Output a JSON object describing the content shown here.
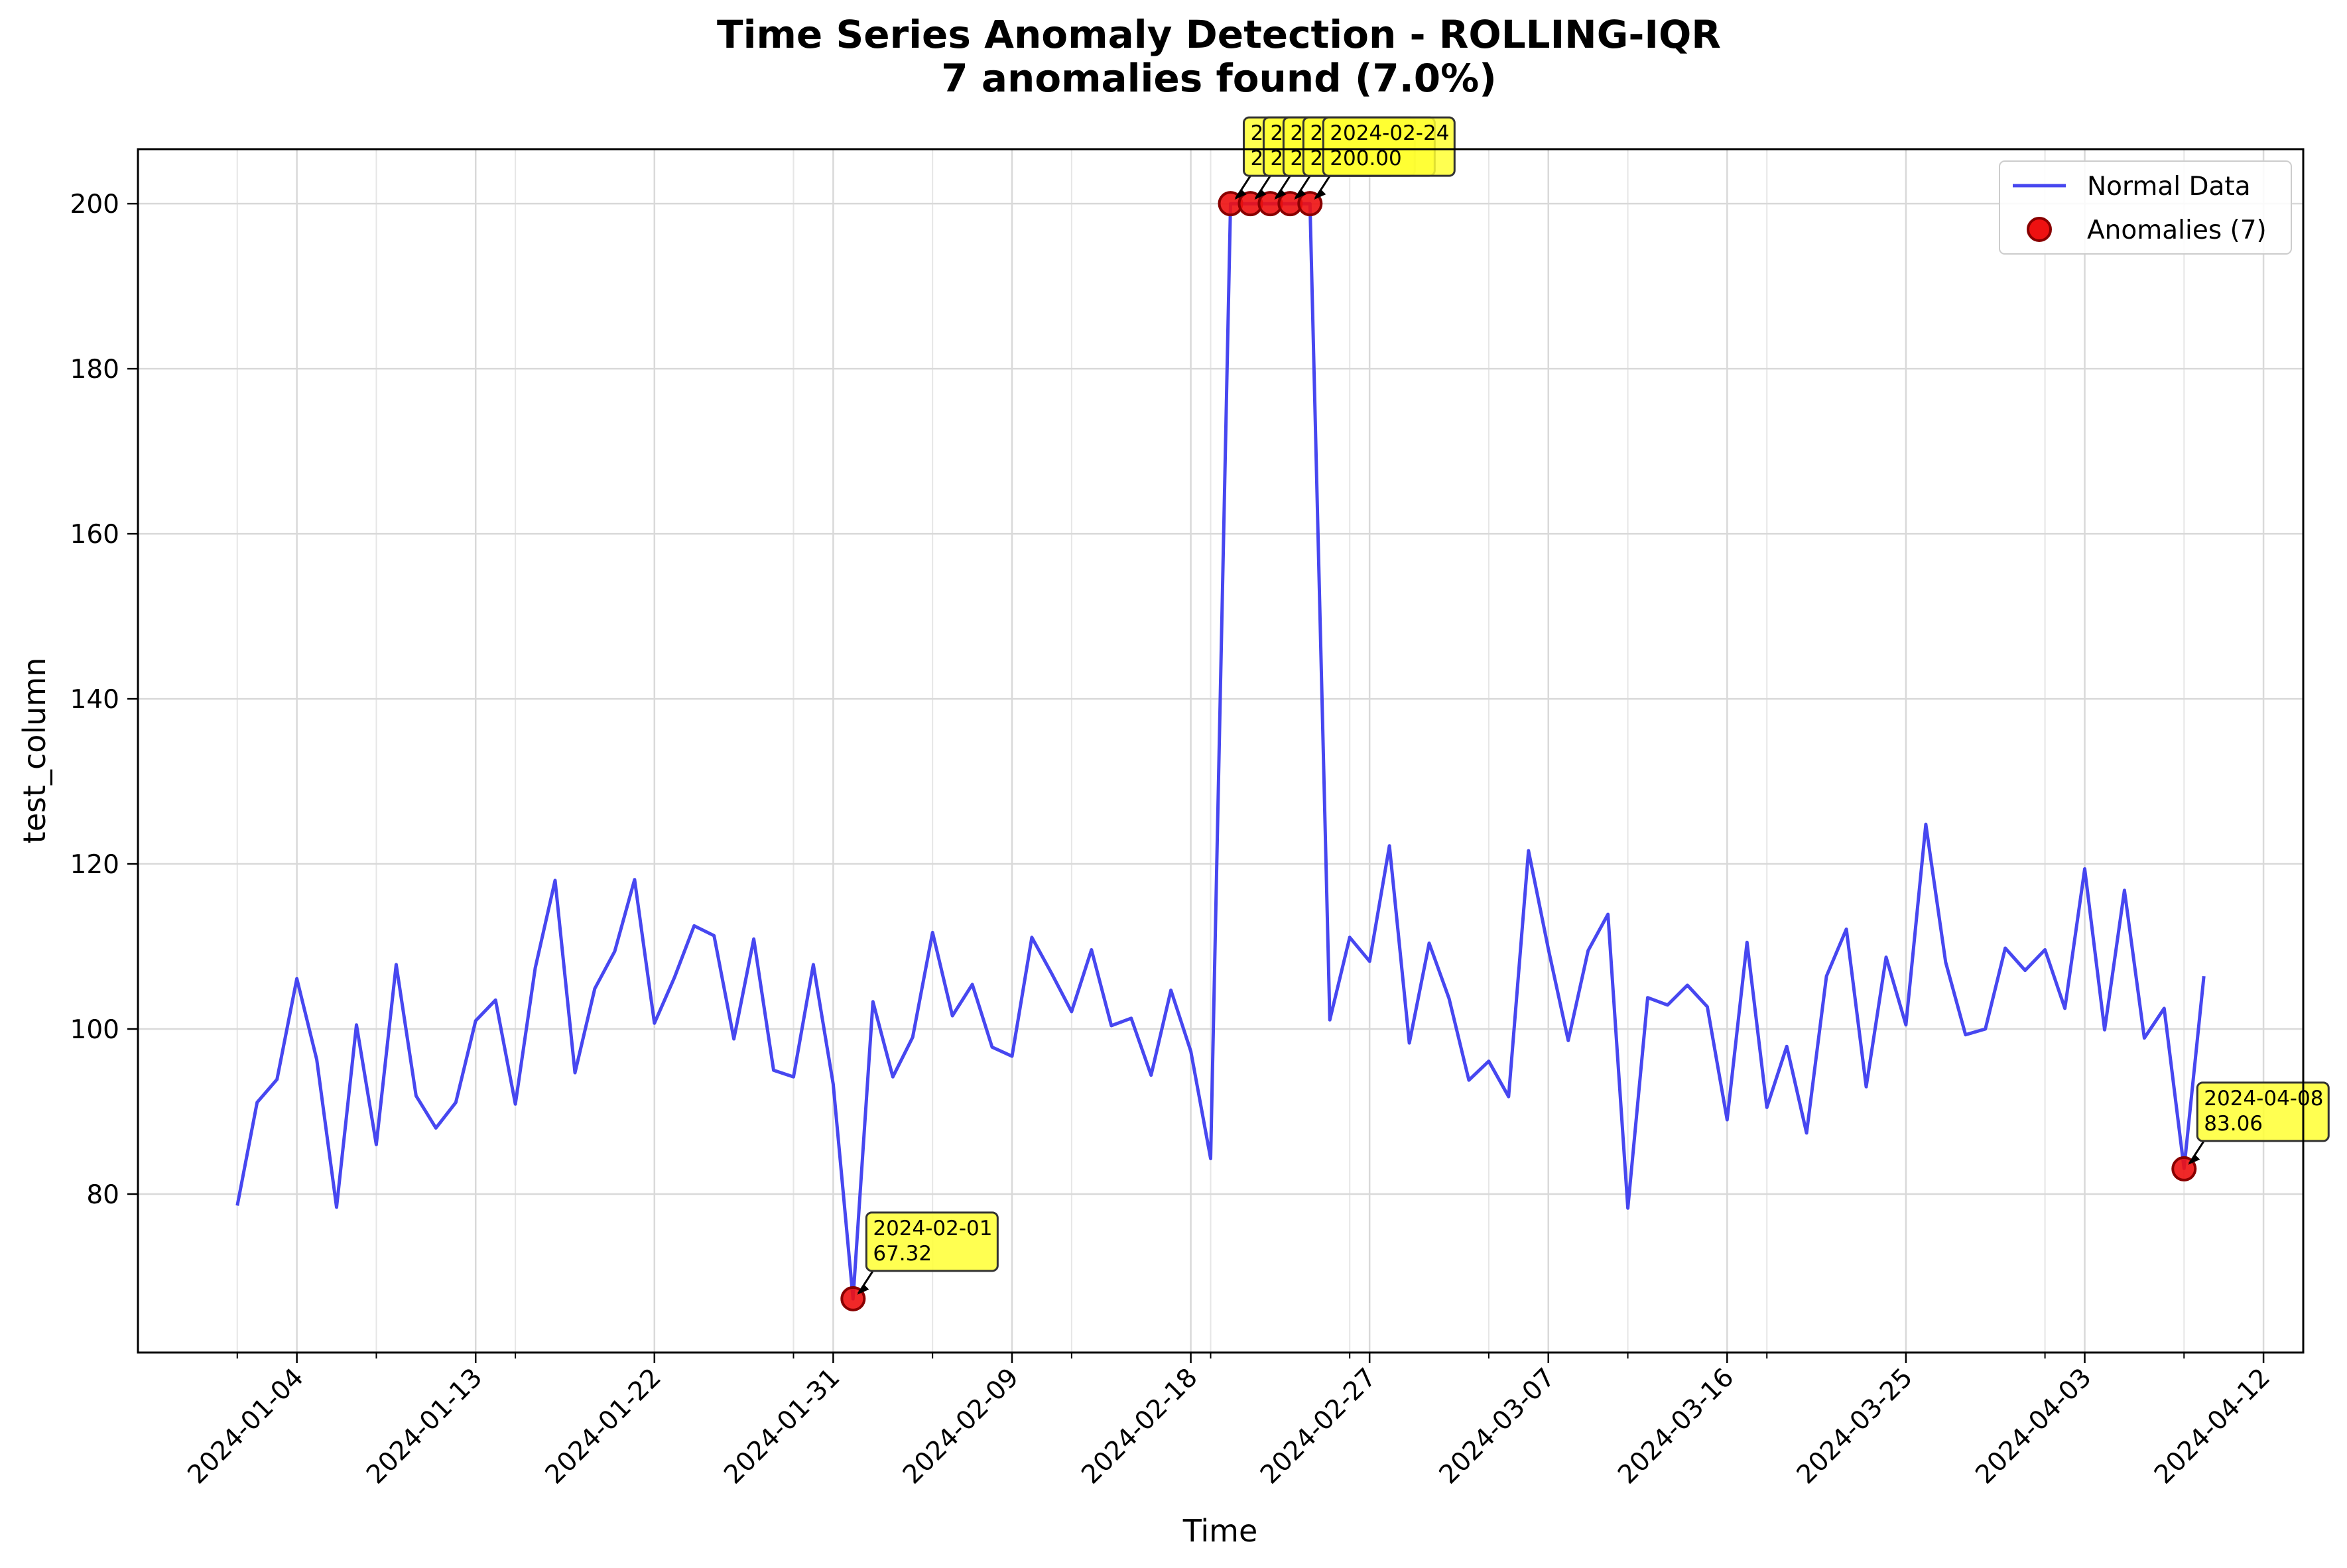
{
  "chart_data": {
    "type": "line",
    "title": "Time Series Anomaly Detection - ROLLING-IQR",
    "subtitle": "7 anomalies found (7.0%)",
    "xlabel": "Time",
    "ylabel": "test_column",
    "x_start_date": "2024-01-01",
    "xlim": [
      "2023-12-27",
      "2024-04-14"
    ],
    "ylim": [
      60.8,
      206.6
    ],
    "y_ticks": [
      80,
      100,
      120,
      140,
      160,
      180,
      200
    ],
    "x_ticks": [
      "2024-01-04",
      "2024-01-13",
      "2024-01-22",
      "2024-01-31",
      "2024-02-09",
      "2024-02-18",
      "2024-02-27",
      "2024-03-07",
      "2024-03-16",
      "2024-03-25",
      "2024-04-03",
      "2024-04-12"
    ],
    "grid": true,
    "legend_position": "top-right",
    "colors": {
      "line": "#3333ee",
      "anomaly_fill": "#ee1111",
      "anomaly_edge": "#880000",
      "annotation_bg": "#ffff33"
    },
    "series": [
      {
        "name": "Normal Data",
        "values": [
          78.6,
          91.1,
          93.9,
          106.1,
          96.3,
          78.4,
          100.5,
          86.0,
          107.8,
          91.9,
          88.0,
          91.1,
          101.0,
          103.5,
          90.9,
          107.4,
          118.0,
          94.7,
          104.9,
          109.4,
          118.1,
          100.7,
          106.2,
          112.5,
          111.3,
          98.8,
          110.9,
          95.0,
          94.2,
          107.8,
          93.3,
          67.3,
          103.3,
          94.2,
          99.0,
          111.7,
          101.6,
          105.4,
          97.8,
          96.7,
          111.1,
          106.7,
          102.1,
          109.6,
          100.4,
          101.3,
          94.4,
          104.7,
          97.3,
          84.3,
          200.0,
          200.0,
          200.0,
          200.0,
          200.0,
          101.1,
          111.1,
          108.2,
          122.2,
          98.3,
          110.4,
          103.7,
          93.8,
          96.1,
          91.8,
          121.6,
          109.7,
          98.6,
          109.5,
          113.9,
          78.3,
          103.8,
          102.9,
          105.3,
          102.7,
          89.0,
          110.5,
          90.5,
          97.9,
          87.4,
          106.4,
          112.1,
          93.0,
          108.7,
          100.5,
          124.8,
          108.1,
          99.3,
          100.0,
          109.8,
          107.1,
          109.6,
          102.5,
          119.4,
          99.9,
          116.8,
          98.9,
          102.5,
          83.1,
          106.4
        ]
      },
      {
        "name": "Anomalies (7)",
        "type": "scatter",
        "points": [
          {
            "x": "2024-02-01",
            "y": 67.32
          },
          {
            "x": "2024-02-20",
            "y": 200.0
          },
          {
            "x": "2024-02-21",
            "y": 200.0
          },
          {
            "x": "2024-02-22",
            "y": 200.0
          },
          {
            "x": "2024-02-23",
            "y": 200.0
          },
          {
            "x": "2024-02-24",
            "y": 200.0
          },
          {
            "x": "2024-04-08",
            "y": 83.06
          }
        ]
      }
    ],
    "annotations": [
      {
        "date": "2024-02-01",
        "value": "67.32",
        "date_shown": "2024-02-01",
        "value_shown": "67.32"
      },
      {
        "date": "2024-02-20",
        "value": "200.00",
        "date_shown": "2",
        "value_shown": "2"
      },
      {
        "date": "2024-02-21",
        "value": "200.00",
        "date_shown": "2",
        "value_shown": "2"
      },
      {
        "date": "2024-02-22",
        "value": "200.00",
        "date_shown": "2",
        "value_shown": "2"
      },
      {
        "date": "2024-02-23",
        "value": "200.00",
        "date_shown": "2",
        "value_shown": "2"
      },
      {
        "date": "2024-02-24",
        "value": "200.00",
        "date_shown": "2024-02-24",
        "value_shown": "200.00"
      },
      {
        "date": "2024-04-08",
        "value": "83.06",
        "date_shown": "2024-04-08",
        "value_shown": "83.06"
      }
    ]
  }
}
